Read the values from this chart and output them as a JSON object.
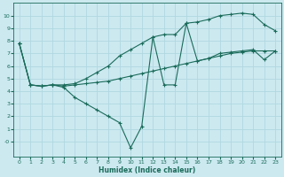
{
  "xlabel": "Humidex (Indice chaleur)",
  "bg_color": "#cce9f0",
  "grid_color": "#b0d8e0",
  "line_color": "#1a6b5a",
  "marker_color": "#1a6b5a",
  "xlim": [
    -0.5,
    23.5
  ],
  "ylim": [
    -1.2,
    11.0
  ],
  "yticks": [
    0,
    1,
    2,
    3,
    4,
    5,
    6,
    7,
    8,
    9,
    10
  ],
  "xticks": [
    0,
    1,
    2,
    3,
    4,
    5,
    6,
    7,
    8,
    9,
    10,
    11,
    12,
    13,
    14,
    15,
    16,
    17,
    18,
    19,
    20,
    21,
    22,
    23
  ],
  "lines": [
    {
      "x": [
        0,
        1,
        2,
        3,
        4,
        5,
        6,
        7,
        8,
        9,
        10,
        11,
        12,
        13,
        14,
        15,
        16,
        17,
        18,
        19,
        20,
        21,
        22,
        23
      ],
      "y": [
        7.8,
        4.5,
        4.4,
        4.5,
        4.5,
        4.6,
        5.0,
        5.5,
        6.0,
        6.8,
        7.3,
        7.8,
        8.3,
        8.5,
        8.5,
        9.4,
        9.5,
        9.7,
        10.0,
        10.1,
        10.2,
        10.1,
        9.3,
        8.8
      ]
    },
    {
      "x": [
        0,
        1,
        2,
        3,
        4,
        5,
        6,
        7,
        8,
        9,
        10,
        11,
        12,
        13,
        14,
        15,
        16,
        17,
        18,
        19,
        20,
        21,
        22,
        23
      ],
      "y": [
        7.8,
        4.5,
        4.4,
        4.5,
        4.3,
        3.5,
        3.0,
        2.5,
        2.0,
        1.5,
        -0.5,
        1.2,
        8.3,
        4.5,
        4.5,
        9.4,
        6.4,
        6.6,
        7.0,
        7.1,
        7.2,
        7.3,
        6.5,
        7.2
      ]
    },
    {
      "x": [
        0,
        1,
        2,
        3,
        4,
        5,
        6,
        7,
        8,
        9,
        10,
        11,
        12,
        13,
        14,
        15,
        16,
        17,
        18,
        19,
        20,
        21,
        22,
        23
      ],
      "y": [
        7.8,
        4.5,
        4.4,
        4.5,
        4.4,
        4.5,
        4.6,
        4.7,
        4.8,
        5.0,
        5.2,
        5.4,
        5.6,
        5.8,
        6.0,
        6.2,
        6.4,
        6.6,
        6.8,
        7.0,
        7.1,
        7.2,
        7.2,
        7.2
      ]
    }
  ]
}
